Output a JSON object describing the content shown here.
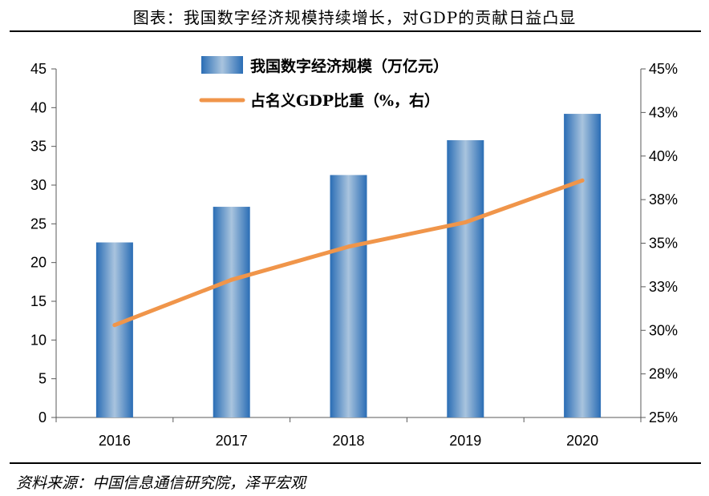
{
  "figure_title": "图表：我国数字经济规模持续增长，对GDP的贡献日益凸显",
  "source_note": "资料来源：中国信息通信研究院，泽平宏观",
  "colors": {
    "bar_dark": "#2a6db5",
    "bar_light": "#a9c4de",
    "line": "#f0954a",
    "axis": "#595959"
  },
  "chart_data": {
    "type": "bar",
    "categories": [
      "2016",
      "2017",
      "2018",
      "2019",
      "2020"
    ],
    "series": [
      {
        "name": "我国数字经济规模（万亿元）",
        "type": "bar",
        "axis": "left",
        "values": [
          22.6,
          27.2,
          31.3,
          35.8,
          39.2
        ]
      },
      {
        "name": "占名义GDP比重（%，右）",
        "type": "line",
        "axis": "right",
        "values": [
          30.3,
          32.9,
          34.8,
          36.2,
          38.6
        ]
      }
    ],
    "y_left": {
      "lim": [
        0,
        45
      ],
      "ticks": [
        0,
        5,
        10,
        15,
        20,
        25,
        30,
        35,
        40,
        45
      ],
      "tick_labels": [
        "0",
        "5",
        "10",
        "15",
        "20",
        "25",
        "30",
        "35",
        "40",
        "45"
      ]
    },
    "y_right": {
      "lim": [
        25,
        45
      ],
      "ticks": [
        25,
        27.5,
        30,
        32.5,
        35,
        37.5,
        40,
        42.5,
        45
      ],
      "tick_labels": [
        "25%",
        "28%",
        "30%",
        "33%",
        "35%",
        "38%",
        "40%",
        "43%",
        "45%"
      ]
    },
    "grid": false,
    "legend_position": "top-center"
  }
}
